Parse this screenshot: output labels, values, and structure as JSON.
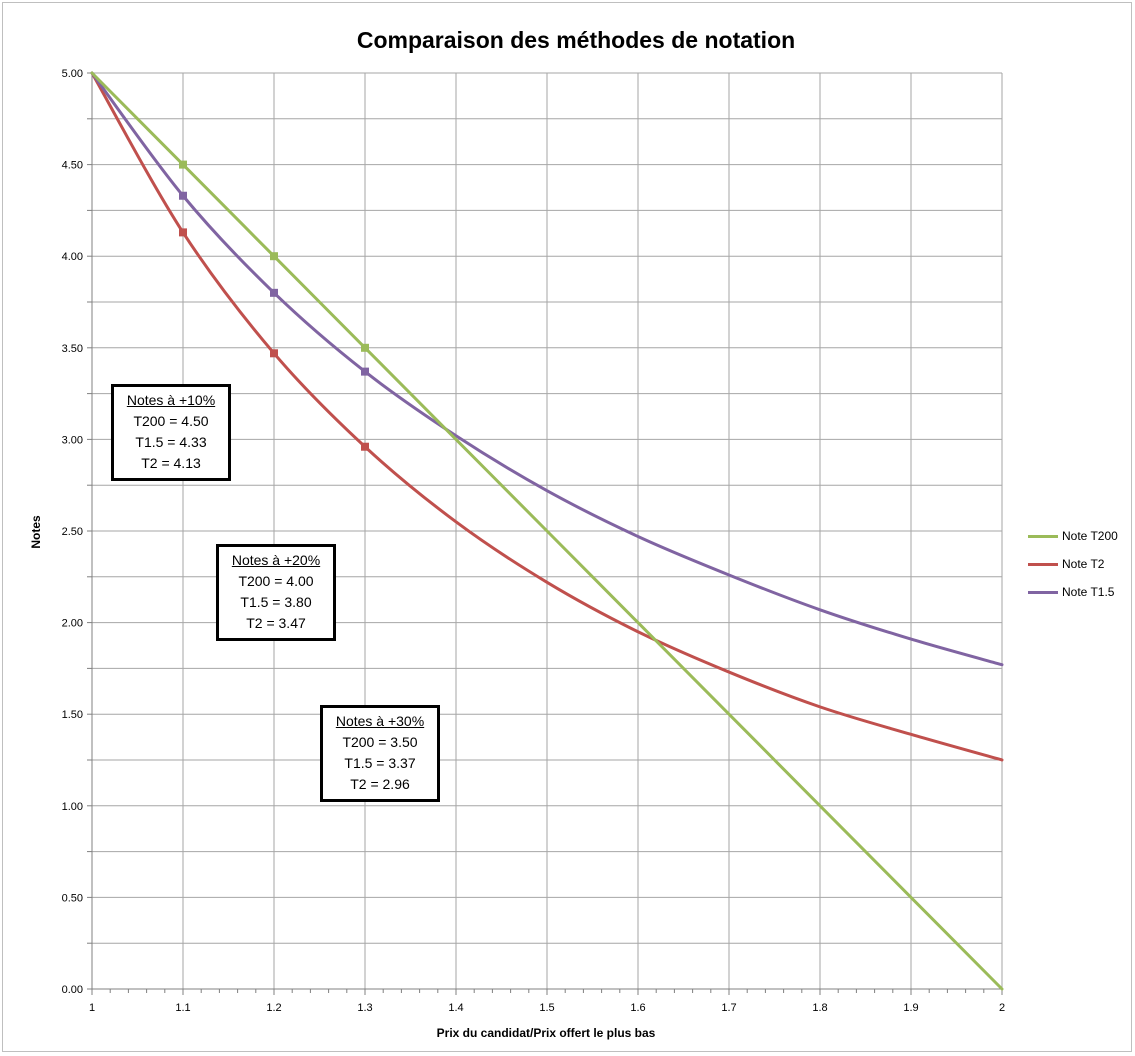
{
  "chart_data": {
    "type": "line",
    "title": "Comparaison des méthodes de notation",
    "xlabel": "Prix du candidat/Prix offert le plus bas",
    "ylabel": "Notes",
    "xlim": [
      1,
      2
    ],
    "ylim": [
      0,
      5
    ],
    "x_ticks": [
      "1",
      "1.1",
      "1.2",
      "1.3",
      "1.4",
      "1.5",
      "1.6",
      "1.7",
      "1.8",
      "1.9",
      "2"
    ],
    "y_ticks": [
      "0.00",
      "0.50",
      "1.00",
      "1.50",
      "2.00",
      "2.50",
      "3.00",
      "3.50",
      "4.00",
      "4.50",
      "5.00"
    ],
    "grid": true,
    "legend_position": "right",
    "x": [
      1,
      1.1,
      1.2,
      1.3,
      1.4,
      1.5,
      1.6,
      1.7,
      1.8,
      1.9,
      2
    ],
    "series": [
      {
        "name": "Note T200",
        "color": "#9bbb59",
        "values": [
          5.0,
          4.5,
          4.0,
          3.5,
          3.0,
          2.5,
          2.0,
          1.5,
          1.0,
          0.5,
          0.0
        ],
        "markers_at": [
          1.1,
          1.2,
          1.3
        ]
      },
      {
        "name": "Note T2",
        "color": "#c0504d",
        "values": [
          5.0,
          4.13,
          3.47,
          2.96,
          2.55,
          2.22,
          1.95,
          1.73,
          1.54,
          1.39,
          1.25
        ],
        "markers_at": [
          1.1,
          1.2,
          1.3
        ]
      },
      {
        "name": "Note T1.5",
        "color": "#8064a2",
        "values": [
          5.0,
          4.33,
          3.8,
          3.37,
          3.02,
          2.72,
          2.47,
          2.26,
          2.07,
          1.91,
          1.77
        ],
        "markers_at": [
          1.1,
          1.2,
          1.3
        ]
      }
    ]
  },
  "annotations": [
    {
      "head": "Notes à +10%",
      "lines": [
        "T200 = 4.50",
        "T1.5 = 4.33",
        "T2 = 4.13"
      ]
    },
    {
      "head": "Notes à +20%",
      "lines": [
        "T200 = 4.00",
        "T1.5 = 3.80",
        "T2 = 3.47"
      ]
    },
    {
      "head": "Notes à +30%",
      "lines": [
        "T200 = 3.50",
        "T1.5 = 3.37",
        "T2 = 2.96"
      ]
    }
  ]
}
